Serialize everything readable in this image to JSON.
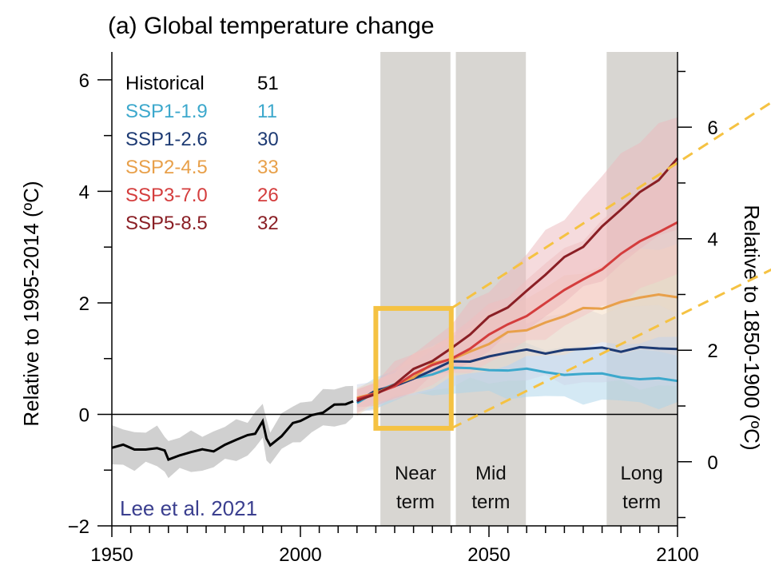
{
  "chart_data": {
    "type": "line",
    "title": "(a) Global temperature change",
    "ylabel": "Relative to 1995-2014 (ºC)",
    "ylabel_right": "Relative to 1850-1900 (ºC)",
    "xlim": [
      1950,
      2100
    ],
    "ylim": [
      -2,
      6.5
    ],
    "y2_offset": 0.85,
    "x_ticks": [
      1950,
      2000,
      2050,
      2100
    ],
    "x_tick_labels": [
      "1950",
      "2000",
      "2050",
      "2100"
    ],
    "y_ticks": [
      -2,
      0,
      2,
      4,
      6
    ],
    "y_tick_labels": [
      "−2",
      "0",
      "2",
      "4",
      "6"
    ],
    "y2_ticks": [
      0,
      2,
      4,
      6
    ],
    "y2_tick_labels": [
      "0",
      "2",
      "4",
      "6"
    ],
    "periods": [
      {
        "start": 2021,
        "end": 2040,
        "label_line1": "Near",
        "label_line2": "term"
      },
      {
        "start": 2041,
        "end": 2060,
        "label_line1": "Mid",
        "label_line2": "term"
      },
      {
        "start": 2081,
        "end": 2100,
        "label_line1": "Long",
        "label_line2": "term"
      }
    ],
    "highlight_box": {
      "x0": 2020,
      "x1": 2040,
      "y0": -0.25,
      "y1": 1.9,
      "color": "#f5c242"
    },
    "dashed_lines": [
      {
        "x": [
          2040,
          2125
        ],
        "y": [
          1.9,
          5.6
        ],
        "color": "#f5c242"
      },
      {
        "x": [
          2040,
          2125
        ],
        "y": [
          -0.25,
          2.6
        ],
        "color": "#f5c242"
      }
    ],
    "legend": [
      {
        "name": "Historical",
        "count": "51",
        "color": "#000000"
      },
      {
        "name": "SSP1-1.9",
        "count": "11",
        "color": "#3ca8cc"
      },
      {
        "name": "SSP1-2.6",
        "count": "30",
        "color": "#1d3a73"
      },
      {
        "name": "SSP2-4.5",
        "count": "33",
        "color": "#e8a04a"
      },
      {
        "name": "SSP3-7.0",
        "count": "26",
        "color": "#d43d3d"
      },
      {
        "name": "SSP5-8.5",
        "count": "32",
        "color": "#8a1f25"
      }
    ],
    "historical": {
      "color": "#000000",
      "band": "#c8c8c8",
      "x": [
        1950,
        1953,
        1956,
        1959,
        1962,
        1964,
        1965,
        1968,
        1971,
        1974,
        1977,
        1980,
        1983,
        1986,
        1988,
        1990,
        1991,
        1992,
        1995,
        1998,
        2000,
        2003,
        2006,
        2009,
        2012,
        2014
      ],
      "y": [
        -0.6,
        -0.58,
        -0.62,
        -0.6,
        -0.62,
        -0.68,
        -0.78,
        -0.72,
        -0.7,
        -0.65,
        -0.62,
        -0.55,
        -0.48,
        -0.38,
        -0.3,
        -0.15,
        -0.45,
        -0.55,
        -0.35,
        -0.2,
        -0.12,
        0.0,
        0.06,
        0.12,
        0.2,
        0.25
      ],
      "spread": 0.32
    },
    "series": [
      {
        "name": "SSP1-1.9",
        "color": "#3ca8cc",
        "band": "#a9d3ea",
        "x": [
          2015,
          2020,
          2025,
          2030,
          2035,
          2040,
          2045,
          2050,
          2055,
          2060,
          2065,
          2070,
          2075,
          2080,
          2085,
          2090,
          2095,
          2100
        ],
        "y": [
          0.25,
          0.38,
          0.52,
          0.66,
          0.75,
          0.8,
          0.82,
          0.82,
          0.8,
          0.78,
          0.76,
          0.74,
          0.72,
          0.7,
          0.68,
          0.66,
          0.62,
          0.58
        ],
        "lower": [
          0.05,
          0.15,
          0.25,
          0.32,
          0.38,
          0.4,
          0.38,
          0.36,
          0.34,
          0.32,
          0.3,
          0.28,
          0.26,
          0.24,
          0.22,
          0.2,
          0.18,
          0.16
        ],
        "upper": [
          0.45,
          0.6,
          0.8,
          0.98,
          1.12,
          1.2,
          1.24,
          1.26,
          1.25,
          1.24,
          1.22,
          1.2,
          1.18,
          1.16,
          1.14,
          1.12,
          1.1,
          1.06
        ]
      },
      {
        "name": "SSP1-2.6",
        "color": "#1d3a73",
        "band": "#cdd6e8",
        "x": [
          2015,
          2020,
          2025,
          2030,
          2035,
          2040,
          2045,
          2050,
          2055,
          2060,
          2065,
          2070,
          2075,
          2080,
          2085,
          2090,
          2095,
          2100
        ],
        "y": [
          0.25,
          0.38,
          0.52,
          0.66,
          0.8,
          0.9,
          0.98,
          1.05,
          1.1,
          1.12,
          1.14,
          1.15,
          1.16,
          1.17,
          1.18,
          1.18,
          1.17,
          1.16
        ],
        "lower": [
          0.05,
          0.15,
          0.27,
          0.36,
          0.45,
          0.52,
          0.56,
          0.6,
          0.62,
          0.62,
          0.62,
          0.6,
          0.58,
          0.56,
          0.55,
          0.53,
          0.5,
          0.48
        ],
        "upper": [
          0.45,
          0.6,
          0.8,
          0.98,
          1.15,
          1.3,
          1.42,
          1.54,
          1.62,
          1.7,
          1.76,
          1.8,
          1.84,
          1.88,
          1.9,
          1.92,
          1.92,
          1.9
        ]
      },
      {
        "name": "SSP2-4.5",
        "color": "#e8a04a",
        "band": "#f6dcc0",
        "x": [
          2015,
          2020,
          2025,
          2030,
          2035,
          2040,
          2045,
          2050,
          2055,
          2060,
          2065,
          2070,
          2075,
          2080,
          2085,
          2090,
          2095,
          2100
        ],
        "y": [
          0.25,
          0.38,
          0.54,
          0.7,
          0.86,
          1.0,
          1.14,
          1.28,
          1.42,
          1.54,
          1.66,
          1.76,
          1.86,
          1.94,
          2.02,
          2.08,
          2.12,
          2.15
        ],
        "lower": [
          0.05,
          0.15,
          0.28,
          0.4,
          0.52,
          0.62,
          0.72,
          0.82,
          0.9,
          0.98,
          1.06,
          1.12,
          1.18,
          1.24,
          1.28,
          1.32,
          1.34,
          1.36
        ],
        "upper": [
          0.45,
          0.62,
          0.82,
          1.02,
          1.22,
          1.42,
          1.6,
          1.78,
          1.96,
          2.12,
          2.28,
          2.42,
          2.56,
          2.7,
          2.82,
          2.92,
          3.0,
          3.08
        ]
      },
      {
        "name": "SSP3-7.0",
        "color": "#d43d3d",
        "band": "#f3c4c4",
        "x": [
          2015,
          2020,
          2025,
          2030,
          2035,
          2040,
          2045,
          2050,
          2055,
          2060,
          2065,
          2070,
          2075,
          2080,
          2085,
          2090,
          2095,
          2100
        ],
        "y": [
          0.25,
          0.38,
          0.54,
          0.7,
          0.86,
          1.02,
          1.2,
          1.4,
          1.6,
          1.8,
          2.0,
          2.2,
          2.42,
          2.64,
          2.86,
          3.08,
          3.28,
          3.48
        ],
        "lower": [
          0.05,
          0.15,
          0.28,
          0.42,
          0.54,
          0.66,
          0.8,
          0.95,
          1.1,
          1.26,
          1.42,
          1.58,
          1.74,
          1.9,
          2.06,
          2.22,
          2.36,
          2.5
        ],
        "upper": [
          0.45,
          0.62,
          0.82,
          1.02,
          1.24,
          1.46,
          1.68,
          1.92,
          2.16,
          2.42,
          2.68,
          2.94,
          3.2,
          3.46,
          3.72,
          3.98,
          4.22,
          4.46
        ]
      },
      {
        "name": "SSP5-8.5",
        "color": "#8a1f25",
        "band": "#ecb8bb",
        "x": [
          2015,
          2020,
          2025,
          2030,
          2035,
          2040,
          2045,
          2050,
          2055,
          2060,
          2065,
          2070,
          2075,
          2080,
          2085,
          2090,
          2095,
          2100
        ],
        "y": [
          0.25,
          0.38,
          0.56,
          0.76,
          0.98,
          1.2,
          1.44,
          1.7,
          1.96,
          2.22,
          2.5,
          2.78,
          3.06,
          3.36,
          3.66,
          3.96,
          4.26,
          4.56
        ],
        "lower": [
          0.05,
          0.15,
          0.3,
          0.46,
          0.62,
          0.78,
          0.96,
          1.16,
          1.36,
          1.56,
          1.78,
          2.0,
          2.22,
          2.46,
          2.7,
          2.94,
          3.16,
          3.4
        ],
        "upper": [
          0.45,
          0.64,
          0.86,
          1.1,
          1.36,
          1.64,
          1.94,
          2.24,
          2.56,
          2.88,
          3.22,
          3.56,
          3.9,
          4.26,
          4.62,
          4.96,
          5.2,
          5.3
        ]
      }
    ]
  },
  "credit": "Lee et al. 2021"
}
